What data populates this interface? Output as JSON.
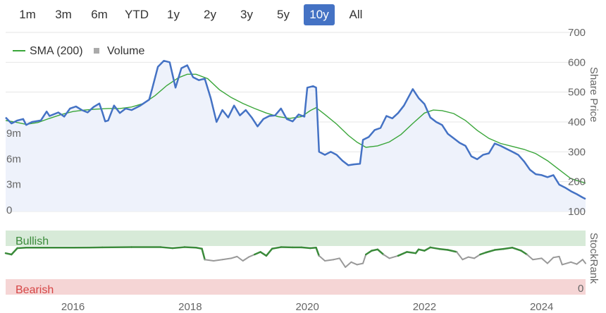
{
  "range_selector": {
    "buttons": [
      "1m",
      "3m",
      "6m",
      "YTD",
      "1y",
      "2y",
      "3y",
      "5y",
      "10y",
      "All"
    ],
    "active": "10y",
    "active_color": "#4472c4"
  },
  "legend": {
    "items": [
      {
        "label": "SMA (200)",
        "color": "#3aa63a"
      },
      {
        "label": "Volume",
        "color": "#aaaaaa"
      }
    ]
  },
  "zones": {
    "bullish_label": "Bullish",
    "bearish_label": "Bearish",
    "bullish_color": "#d7ead8",
    "bearish_color": "#f5d5d5"
  },
  "chart_data": {
    "type": "line",
    "x_range": [
      2014.85,
      2024.75
    ],
    "x_ticks": [
      2016,
      2018,
      2020,
      2022,
      2024
    ],
    "price_axis": {
      "title": "Share Price",
      "ticks": [
        100,
        200,
        300,
        400,
        500,
        600,
        700
      ],
      "range": [
        100,
        700
      ]
    },
    "volume_axis": {
      "ticks": [
        "0",
        "3m",
        "6m",
        "9m"
      ],
      "tick_values": [
        0,
        3,
        6,
        9
      ]
    },
    "stockrank_axis": {
      "title": "StockRank",
      "ticks": [
        "0"
      ]
    },
    "price": {
      "name": "Share price",
      "color": "#4472c4",
      "points": [
        [
          2014.85,
          415
        ],
        [
          2014.95,
          395
        ],
        [
          2015.05,
          405
        ],
        [
          2015.15,
          410
        ],
        [
          2015.2,
          390
        ],
        [
          2015.3,
          400
        ],
        [
          2015.45,
          405
        ],
        [
          2015.55,
          435
        ],
        [
          2015.6,
          420
        ],
        [
          2015.75,
          432
        ],
        [
          2015.85,
          418
        ],
        [
          2015.95,
          445
        ],
        [
          2016.05,
          452
        ],
        [
          2016.15,
          440
        ],
        [
          2016.25,
          432
        ],
        [
          2016.35,
          450
        ],
        [
          2016.45,
          462
        ],
        [
          2016.5,
          433
        ],
        [
          2016.55,
          402
        ],
        [
          2016.6,
          405
        ],
        [
          2016.7,
          455
        ],
        [
          2016.8,
          430
        ],
        [
          2016.9,
          445
        ],
        [
          2017.0,
          440
        ],
        [
          2017.15,
          455
        ],
        [
          2017.3,
          475
        ],
        [
          2017.35,
          510
        ],
        [
          2017.45,
          585
        ],
        [
          2017.55,
          605
        ],
        [
          2017.65,
          600
        ],
        [
          2017.75,
          515
        ],
        [
          2017.85,
          580
        ],
        [
          2017.95,
          590
        ],
        [
          2018.05,
          550
        ],
        [
          2018.15,
          540
        ],
        [
          2018.25,
          545
        ],
        [
          2018.35,
          480
        ],
        [
          2018.45,
          400
        ],
        [
          2018.55,
          440
        ],
        [
          2018.65,
          415
        ],
        [
          2018.75,
          455
        ],
        [
          2018.85,
          422
        ],
        [
          2018.95,
          440
        ],
        [
          2019.05,
          415
        ],
        [
          2019.15,
          385
        ],
        [
          2019.25,
          410
        ],
        [
          2019.35,
          420
        ],
        [
          2019.45,
          422
        ],
        [
          2019.55,
          445
        ],
        [
          2019.65,
          410
        ],
        [
          2019.75,
          402
        ],
        [
          2019.85,
          425
        ],
        [
          2019.95,
          418
        ],
        [
          2020.0,
          515
        ],
        [
          2020.1,
          520
        ],
        [
          2020.15,
          515
        ],
        [
          2020.2,
          300
        ],
        [
          2020.3,
          290
        ],
        [
          2020.4,
          300
        ],
        [
          2020.5,
          290
        ],
        [
          2020.6,
          270
        ],
        [
          2020.7,
          255
        ],
        [
          2020.8,
          258
        ],
        [
          2020.9,
          260
        ],
        [
          2020.95,
          340
        ],
        [
          2021.05,
          350
        ],
        [
          2021.15,
          373
        ],
        [
          2021.25,
          380
        ],
        [
          2021.35,
          420
        ],
        [
          2021.45,
          412
        ],
        [
          2021.55,
          430
        ],
        [
          2021.65,
          455
        ],
        [
          2021.8,
          510
        ],
        [
          2021.9,
          480
        ],
        [
          2022.0,
          460
        ],
        [
          2022.1,
          415
        ],
        [
          2022.2,
          400
        ],
        [
          2022.3,
          390
        ],
        [
          2022.4,
          360
        ],
        [
          2022.5,
          345
        ],
        [
          2022.6,
          330
        ],
        [
          2022.7,
          320
        ],
        [
          2022.8,
          285
        ],
        [
          2022.9,
          275
        ],
        [
          2023.0,
          290
        ],
        [
          2023.1,
          295
        ],
        [
          2023.2,
          328
        ],
        [
          2023.3,
          320
        ],
        [
          2023.4,
          310
        ],
        [
          2023.5,
          300
        ],
        [
          2023.6,
          290
        ],
        [
          2023.7,
          268
        ],
        [
          2023.8,
          240
        ],
        [
          2023.9,
          225
        ],
        [
          2024.0,
          222
        ],
        [
          2024.1,
          215
        ],
        [
          2024.2,
          222
        ],
        [
          2024.3,
          190
        ],
        [
          2024.4,
          180
        ],
        [
          2024.5,
          168
        ],
        [
          2024.6,
          158
        ],
        [
          2024.7,
          147
        ],
        [
          2024.75,
          142
        ]
      ]
    },
    "sma": {
      "name": "SMA (200)",
      "color": "#3aa63a",
      "points": [
        [
          2014.85,
          405
        ],
        [
          2015.0,
          400
        ],
        [
          2015.2,
          392
        ],
        [
          2015.4,
          398
        ],
        [
          2015.6,
          412
        ],
        [
          2015.8,
          425
        ],
        [
          2016.0,
          435
        ],
        [
          2016.2,
          440
        ],
        [
          2016.4,
          443
        ],
        [
          2016.6,
          445
        ],
        [
          2016.8,
          445
        ],
        [
          2017.0,
          450
        ],
        [
          2017.2,
          462
        ],
        [
          2017.4,
          488
        ],
        [
          2017.6,
          522
        ],
        [
          2017.8,
          548
        ],
        [
          2017.95,
          560
        ],
        [
          2018.1,
          560
        ],
        [
          2018.3,
          545
        ],
        [
          2018.5,
          508
        ],
        [
          2018.7,
          482
        ],
        [
          2018.9,
          462
        ],
        [
          2019.1,
          445
        ],
        [
          2019.3,
          430
        ],
        [
          2019.5,
          418
        ],
        [
          2019.7,
          412
        ],
        [
          2019.9,
          418
        ],
        [
          2020.05,
          438
        ],
        [
          2020.15,
          448
        ],
        [
          2020.3,
          425
        ],
        [
          2020.5,
          393
        ],
        [
          2020.7,
          355
        ],
        [
          2020.85,
          332
        ],
        [
          2021.0,
          315
        ],
        [
          2021.2,
          320
        ],
        [
          2021.4,
          333
        ],
        [
          2021.6,
          358
        ],
        [
          2021.8,
          395
        ],
        [
          2022.0,
          430
        ],
        [
          2022.15,
          440
        ],
        [
          2022.3,
          438
        ],
        [
          2022.5,
          428
        ],
        [
          2022.7,
          405
        ],
        [
          2022.9,
          372
        ],
        [
          2023.1,
          345
        ],
        [
          2023.3,
          328
        ],
        [
          2023.5,
          318
        ],
        [
          2023.7,
          308
        ],
        [
          2023.9,
          294
        ],
        [
          2024.1,
          270
        ],
        [
          2024.3,
          240
        ],
        [
          2024.5,
          210
        ],
        [
          2024.75,
          195
        ]
      ]
    },
    "stockrank": {
      "name": "StockRank",
      "color_above": "#3a8a3a",
      "color_below": "#999999",
      "threshold": 70,
      "points": [
        [
          2014.85,
          75
        ],
        [
          2014.95,
          70
        ],
        [
          2015.05,
          95
        ],
        [
          2015.2,
          97
        ],
        [
          2015.6,
          97
        ],
        [
          2016.0,
          97
        ],
        [
          2016.5,
          98
        ],
        [
          2017.0,
          99
        ],
        [
          2017.5,
          99
        ],
        [
          2017.7,
          95
        ],
        [
          2017.9,
          99
        ],
        [
          2018.1,
          97
        ],
        [
          2018.2,
          93
        ],
        [
          2018.25,
          50
        ],
        [
          2018.4,
          45
        ],
        [
          2018.55,
          50
        ],
        [
          2018.7,
          55
        ],
        [
          2018.8,
          62
        ],
        [
          2018.9,
          45
        ],
        [
          2019.0,
          60
        ],
        [
          2019.1,
          70
        ],
        [
          2019.2,
          80
        ],
        [
          2019.3,
          65
        ],
        [
          2019.4,
          93
        ],
        [
          2019.55,
          99
        ],
        [
          2019.75,
          98
        ],
        [
          2019.9,
          98
        ],
        [
          2020.05,
          95
        ],
        [
          2020.15,
          97
        ],
        [
          2020.2,
          65
        ],
        [
          2020.3,
          45
        ],
        [
          2020.45,
          50
        ],
        [
          2020.55,
          55
        ],
        [
          2020.65,
          20
        ],
        [
          2020.75,
          40
        ],
        [
          2020.85,
          30
        ],
        [
          2020.95,
          35
        ],
        [
          2021.0,
          70
        ],
        [
          2021.1,
          85
        ],
        [
          2021.2,
          90
        ],
        [
          2021.3,
          70
        ],
        [
          2021.4,
          55
        ],
        [
          2021.55,
          65
        ],
        [
          2021.7,
          80
        ],
        [
          2021.85,
          75
        ],
        [
          2021.9,
          90
        ],
        [
          2022.0,
          85
        ],
        [
          2022.1,
          98
        ],
        [
          2022.25,
          92
        ],
        [
          2022.4,
          88
        ],
        [
          2022.55,
          80
        ],
        [
          2022.65,
          50
        ],
        [
          2022.75,
          60
        ],
        [
          2022.85,
          55
        ],
        [
          2022.95,
          70
        ],
        [
          2023.05,
          78
        ],
        [
          2023.2,
          88
        ],
        [
          2023.35,
          92
        ],
        [
          2023.5,
          97
        ],
        [
          2023.65,
          85
        ],
        [
          2023.75,
          70
        ],
        [
          2023.85,
          50
        ],
        [
          2024.0,
          55
        ],
        [
          2024.1,
          35
        ],
        [
          2024.2,
          58
        ],
        [
          2024.3,
          62
        ],
        [
          2024.35,
          30
        ],
        [
          2024.5,
          40
        ],
        [
          2024.6,
          32
        ],
        [
          2024.7,
          50
        ],
        [
          2024.75,
          35
        ]
      ]
    },
    "volume": {
      "name": "Volume",
      "color": "#aaaaaa",
      "description_values_in_millions": [
        [
          2015.35,
          3.4
        ],
        [
          2016.05,
          1.2
        ],
        [
          2016.35,
          1.6
        ],
        [
          2016.45,
          2.2
        ],
        [
          2016.55,
          0.8
        ],
        [
          2016.7,
          3.7
        ],
        [
          2017.1,
          1.0
        ],
        [
          2017.3,
          1.5
        ],
        [
          2017.6,
          0.8
        ],
        [
          2018.05,
          1.3
        ],
        [
          2018.2,
          2.5
        ],
        [
          2018.27,
          8.3
        ],
        [
          2018.35,
          2.0
        ],
        [
          2018.5,
          1.0
        ],
        [
          2018.85,
          0.9
        ],
        [
          2019.1,
          0.8
        ],
        [
          2019.45,
          0.6
        ],
        [
          2019.8,
          3.2
        ],
        [
          2020.2,
          1.2
        ],
        [
          2020.45,
          0.9
        ],
        [
          2020.65,
          1.3
        ],
        [
          2020.95,
          2.0
        ],
        [
          2021.3,
          1.0
        ],
        [
          2021.65,
          0.8
        ],
        [
          2022.0,
          1.5
        ],
        [
          2022.25,
          0.8
        ],
        [
          2022.6,
          1.2
        ],
        [
          2022.95,
          1.6
        ],
        [
          2023.35,
          0.8
        ],
        [
          2023.5,
          1.4
        ],
        [
          2023.75,
          1.3
        ],
        [
          2023.95,
          2.0
        ],
        [
          2024.2,
          0.8
        ],
        [
          2024.25,
          1.2
        ],
        [
          2024.4,
          1.8
        ],
        [
          2024.55,
          1.0
        ]
      ]
    }
  }
}
